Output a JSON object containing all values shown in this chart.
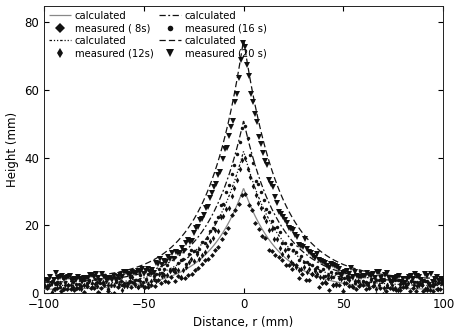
{
  "xlim": [
    -100,
    100
  ],
  "ylim": [
    0,
    85
  ],
  "xlabel": "Distance, r (mm)",
  "ylabel": "Height (mm)",
  "yticks": [
    0,
    20,
    40,
    60,
    80
  ],
  "xticks": [
    -100,
    -50,
    0,
    50,
    100
  ],
  "calc_params": [
    {
      "peak": 30,
      "sigma": 18,
      "linestyle": "solid",
      "color": "#888888",
      "base": 1.0,
      "lw": 0.9
    },
    {
      "peak": 40,
      "sigma": 18,
      "linestyle": "dashdot2",
      "color": "#111111",
      "base": 2.0,
      "lw": 0.9
    },
    {
      "peak": 48,
      "sigma": 18,
      "linestyle": "dashdot",
      "color": "#111111",
      "base": 3.0,
      "lw": 0.9
    },
    {
      "peak": 71,
      "sigma": 18,
      "linestyle": "dashed",
      "color": "#111111",
      "base": 4.0,
      "lw": 0.9
    }
  ],
  "meas_params": [
    {
      "peak": 30,
      "sigma": 15,
      "marker": "D",
      "markersize": 2.5,
      "color": "#111111",
      "base": 1.0,
      "seed": 10,
      "npts": 120
    },
    {
      "peak": 40,
      "sigma": 15,
      "marker": "d",
      "markersize": 3.0,
      "color": "#111111",
      "base": 2.0,
      "seed": 20,
      "npts": 150
    },
    {
      "peak": 48,
      "sigma": 15,
      "marker": "o",
      "markersize": 2.5,
      "color": "#111111",
      "base": 3.0,
      "seed": 30,
      "npts": 150
    },
    {
      "peak": 71,
      "sigma": 15,
      "marker": "v",
      "markersize": 4.0,
      "color": "#111111",
      "base": 4.0,
      "seed": 40,
      "npts": 200
    }
  ],
  "legend_left": [
    {
      "label": "calculated",
      "linestyle": "solid",
      "color": "#888888"
    },
    {
      "label": "calculated",
      "linestyle": "dashdot2",
      "color": "#111111"
    },
    {
      "label": "calculated",
      "linestyle": "dashdot",
      "color": "#111111"
    },
    {
      "label": "calculated",
      "linestyle": "dashed",
      "color": "#111111"
    }
  ],
  "legend_right": [
    {
      "label": "measured ( 8s)",
      "marker": "D",
      "markersize": 5
    },
    {
      "label": "measured (12s)",
      "marker": "d",
      "markersize": 5
    },
    {
      "label": "measured (16 s)",
      "marker": "o",
      "markersize": 4
    },
    {
      "label": "measured (20 s)",
      "marker": "v",
      "markersize": 6
    }
  ],
  "background_color": "#ffffff"
}
